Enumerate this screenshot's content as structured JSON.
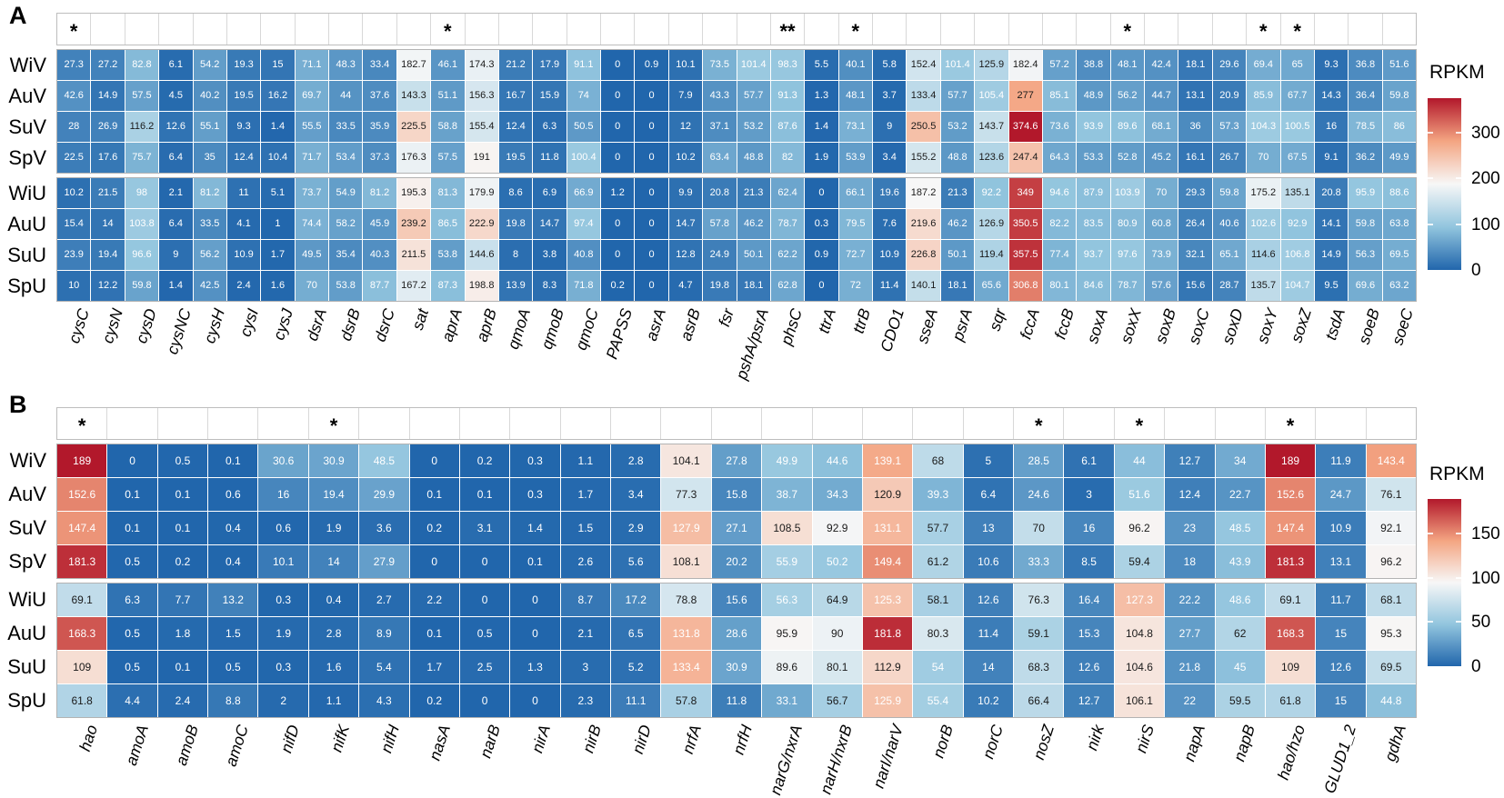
{
  "chart_data": [
    {
      "type": "heatmap",
      "panel_label": "A",
      "legend": {
        "title": "RPKM",
        "ticks": [
          300,
          200,
          100,
          0
        ],
        "scale_max": 374.6
      },
      "significance": {
        "cysC": "*",
        "aprA": "*",
        "phsC": "**",
        "ttrB": "*",
        "soxX": "*",
        "soxY": "*",
        "soxZ": "*"
      },
      "genes": [
        "cysC",
        "cysN",
        "cysD",
        "cysNC",
        "cysH",
        "cysI",
        "cysJ",
        "dsrA",
        "dsrB",
        "dsrC",
        "sat",
        "aprA",
        "aprB",
        "qmoA",
        "qmoB",
        "qmoC",
        "PAPSS",
        "asrA",
        "asrB",
        "fsr",
        "pshA/psrA",
        "phsC",
        "ttrA",
        "ttrB",
        "CDO1",
        "sseA",
        "psrA",
        "sqr",
        "fccA",
        "fccB",
        "soxA",
        "soxX",
        "soxB",
        "soxC",
        "soxD",
        "soxY",
        "soxZ",
        "tsdA",
        "soeB",
        "soeC"
      ],
      "row_groups": [
        {
          "rows": [
            "WiV",
            "AuV",
            "SuV",
            "SpV"
          ],
          "values": [
            [
              27.3,
              27.2,
              82.8,
              6.1,
              54.2,
              19.3,
              15,
              71.1,
              48.3,
              33.4,
              182.7,
              46.1,
              174.3,
              21.2,
              17.9,
              91.1,
              0,
              0.9,
              10.1,
              73.5,
              101.4,
              98.3,
              5.5,
              40.1,
              5.8,
              152.4,
              101.4,
              125.9,
              182.4,
              57.2,
              38.8,
              48.1,
              42.4,
              18.1,
              29.6,
              69.4,
              65,
              9.3,
              36.8,
              51.6
            ],
            [
              42.6,
              14.9,
              57.5,
              4.5,
              40.2,
              19.5,
              16.2,
              69.7,
              44,
              37.6,
              143.3,
              51.1,
              156.3,
              16.7,
              15.9,
              74,
              0,
              0,
              7.9,
              43.3,
              57.7,
              91.3,
              1.3,
              48.1,
              3.7,
              133.4,
              57.7,
              105.4,
              277,
              85.1,
              48.9,
              56.2,
              44.7,
              13.1,
              20.9,
              85.9,
              67.7,
              14.3,
              36.4,
              59.8
            ],
            [
              28,
              26.9,
              116.2,
              12.6,
              55.1,
              9.3,
              1.4,
              55.5,
              33.5,
              35.9,
              225.5,
              58.8,
              155.4,
              12.4,
              6.3,
              50.5,
              0,
              0,
              12,
              37.1,
              53.2,
              87.6,
              1.4,
              73.1,
              9,
              250.5,
              53.2,
              143.7,
              374.6,
              73.6,
              93.9,
              89.6,
              68.1,
              36,
              57.3,
              104.3,
              100.5,
              16,
              78.5,
              86
            ],
            [
              22.5,
              17.6,
              75.7,
              6.4,
              35,
              12.4,
              10.4,
              71.7,
              53.4,
              37.3,
              176.3,
              57.5,
              191,
              19.5,
              11.8,
              100.4,
              0,
              0,
              10.2,
              63.4,
              48.8,
              82,
              1.9,
              53.9,
              3.4,
              155.2,
              48.8,
              123.6,
              247.4,
              64.3,
              53.3,
              52.8,
              45.2,
              16.1,
              26.7,
              70,
              67.5,
              9.1,
              36.2,
              49.9
            ]
          ]
        },
        {
          "rows": [
            "WiU",
            "AuU",
            "SuU",
            "SpU"
          ],
          "values": [
            [
              10.2,
              21.5,
              98,
              2.1,
              81.2,
              11,
              5.1,
              73.7,
              54.9,
              81.2,
              195.3,
              81.3,
              179.9,
              8.6,
              6.9,
              66.9,
              1.2,
              0,
              9.9,
              20.8,
              21.3,
              62.4,
              0,
              66.1,
              19.6,
              187.2,
              21.3,
              92.2,
              349,
              94.6,
              87.9,
              103.9,
              70,
              29.3,
              59.8,
              175.2,
              135.1,
              20.8,
              95.9,
              88.6
            ],
            [
              15.4,
              14,
              103.8,
              6.4,
              33.5,
              4.1,
              1,
              74.4,
              58.2,
              45.9,
              239.2,
              86.5,
              222.9,
              19.8,
              14.7,
              97.4,
              0,
              0,
              14.7,
              57.8,
              46.2,
              78.7,
              0.3,
              79.5,
              7.6,
              219.6,
              46.2,
              126.9,
              350.5,
              82.2,
              83.5,
              80.9,
              60.8,
              26.4,
              40.6,
              102.6,
              92.9,
              14.1,
              59.8,
              63.8
            ],
            [
              23.9,
              19.4,
              96.6,
              9,
              56.2,
              10.9,
              1.7,
              49.5,
              35.4,
              40.3,
              211.5,
              53.8,
              144.6,
              8,
              3.8,
              40.8,
              0,
              0,
              12.8,
              24.9,
              50.1,
              62.2,
              0.9,
              72.7,
              10.9,
              226.8,
              50.1,
              119.4,
              357.5,
              77.4,
              93.7,
              97.6,
              73.9,
              32.1,
              65.1,
              114.6,
              106.8,
              14.9,
              56.3,
              69.5
            ],
            [
              10,
              12.2,
              59.8,
              1.4,
              42.5,
              2.4,
              1.6,
              70,
              53.8,
              87.7,
              167.2,
              87.3,
              198.8,
              13.9,
              8.3,
              71.8,
              0.2,
              0,
              4.7,
              19.8,
              18.1,
              62.8,
              0,
              72,
              11.4,
              140.1,
              18.1,
              65.6,
              306.8,
              80.1,
              84.6,
              78.7,
              57.6,
              15.6,
              28.7,
              135.7,
              104.7,
              9.5,
              69.6,
              63.2
            ]
          ]
        }
      ]
    },
    {
      "type": "heatmap",
      "panel_label": "B",
      "legend": {
        "title": "RPKM",
        "ticks": [
          150,
          100,
          50,
          0
        ],
        "scale_max": 189
      },
      "significance": {
        "hao": "*",
        "nifK": "*",
        "nosZ": "*",
        "nirS": "*",
        "hao/hzo": "*"
      },
      "genes": [
        "hao",
        "amoA",
        "amoB",
        "amoC",
        "nifD",
        "nifK",
        "nifH",
        "nasA",
        "narB",
        "nirA",
        "nirB",
        "nirD",
        "nrfA",
        "nrfH",
        "narG/nxrA",
        "narH/nxrB",
        "narI/narV",
        "norB",
        "norC",
        "nosZ",
        "nirk",
        "nirS",
        "napA",
        "napB",
        "hao/hzo",
        "GLUD1_2",
        "gdhA"
      ],
      "row_groups": [
        {
          "rows": [
            "WiV",
            "AuV",
            "SuV",
            "SpV"
          ],
          "values": [
            [
              189,
              0,
              0.5,
              0.1,
              30.6,
              30.9,
              48.5,
              0,
              0.2,
              0.3,
              1.1,
              2.8,
              104.1,
              27.8,
              49.9,
              44.6,
              139.1,
              68,
              5,
              28.5,
              6.1,
              44,
              12.7,
              34,
              189,
              11.9,
              143.4
            ],
            [
              152.6,
              0.1,
              0.1,
              0.6,
              16,
              19.4,
              29.9,
              0.1,
              0.1,
              0.3,
              1.7,
              3.4,
              77.3,
              15.8,
              38.7,
              34.3,
              120.9,
              39.3,
              6.4,
              24.6,
              3,
              51.6,
              12.4,
              22.7,
              152.6,
              24.7,
              76.1
            ],
            [
              147.4,
              0.1,
              0.1,
              0.4,
              0.6,
              1.9,
              3.6,
              0.2,
              3.1,
              1.4,
              1.5,
              2.9,
              127.9,
              27.1,
              108.5,
              92.9,
              131.1,
              57.7,
              13,
              70,
              16,
              96.2,
              23,
              48.5,
              147.4,
              10.9,
              92.1
            ],
            [
              181.3,
              0.5,
              0.2,
              0.4,
              10.1,
              14,
              27.9,
              0,
              0,
              0.1,
              2.6,
              5.6,
              108.1,
              20.2,
              55.9,
              50.2,
              149.4,
              61.2,
              10.6,
              33.3,
              8.5,
              59.4,
              18,
              43.9,
              181.3,
              13.1,
              96.2
            ]
          ]
        },
        {
          "rows": [
            "WiU",
            "AuU",
            "SuU",
            "SpU"
          ],
          "values": [
            [
              69.1,
              6.3,
              7.7,
              13.2,
              0.3,
              0.4,
              2.7,
              2.2,
              0,
              0,
              8.7,
              17.2,
              78.8,
              15.6,
              56.3,
              64.9,
              125.3,
              58.1,
              12.6,
              76.3,
              16.4,
              127.3,
              22.2,
              48.6,
              69.1,
              11.7,
              68.1
            ],
            [
              168.3,
              0.5,
              1.8,
              1.5,
              1.9,
              2.8,
              8.9,
              0.1,
              0.5,
              0,
              2.1,
              6.5,
              131.8,
              28.6,
              95.9,
              90,
              181.8,
              80.3,
              11.4,
              59.1,
              15.3,
              104.8,
              27.7,
              62,
              168.3,
              15,
              95.3
            ],
            [
              109,
              0.5,
              0.1,
              0.5,
              0.3,
              1.6,
              5.4,
              1.7,
              2.5,
              1.3,
              3,
              5.2,
              133.4,
              30.9,
              89.6,
              80.1,
              112.9,
              54,
              14,
              68.3,
              12.6,
              104.6,
              21.8,
              45,
              109,
              12.6,
              69.5
            ],
            [
              61.8,
              4.4,
              2.4,
              8.8,
              2,
              1.1,
              4.3,
              0.2,
              0,
              0,
              2.3,
              11.1,
              57.8,
              11.8,
              33.1,
              56.7,
              125.9,
              55.4,
              10.2,
              66.4,
              12.7,
              106.1,
              22,
              59.5,
              61.8,
              15,
              44.8
            ]
          ]
        }
      ]
    }
  ],
  "style": {
    "diverging_scale": [
      "#2166AC",
      "#92C5DE",
      "#F7F7F7",
      "#F4A582",
      "#B2182B"
    ],
    "cell_text_light": "#ffffff",
    "cell_text_dark": "#1a1a1a",
    "grid_border": "#b3b3b3",
    "background": "#ffffff"
  }
}
